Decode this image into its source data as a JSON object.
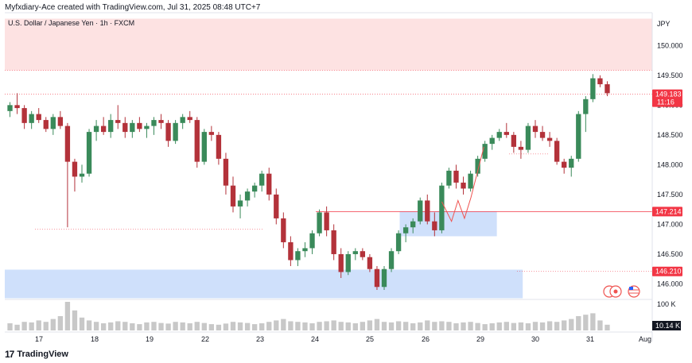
{
  "header": {
    "credit": "Myfxdiary-Ace created with TradingView.com, Jul 31, 2025 08:48 UTC+7"
  },
  "footer": {
    "brand": "TradingView"
  },
  "colors": {
    "up": "#26a69a",
    "down": "#ef5350",
    "candle_up": "#3a8a5a",
    "candle_down": "#b3323a",
    "supply_zone": "#fde2e2",
    "demand_zone": "#cfe0fb",
    "price_tag": "#f23645",
    "volume": "#c8c8c8"
  },
  "chart_data": {
    "type": "candlestick",
    "title": "U.S. Dollar / Japanese Yen · 1h · FXCM",
    "currency_label": "JPY",
    "y_ticks": [
      "150.000",
      "149.500",
      "149.000",
      "148.500",
      "148.000",
      "147.500",
      "147.000",
      "146.500",
      "146.000"
    ],
    "ylim": [
      145.74,
      150.55
    ],
    "x_ticks": [
      "17",
      "18",
      "19",
      "22",
      "23",
      "24",
      "25",
      "26",
      "29",
      "30",
      "31",
      "Aug"
    ],
    "current_price": "149.183",
    "countdown": "11:16",
    "level_tags": [
      "147.214",
      "146.210"
    ],
    "volume_tick": "100 K",
    "volume_value": "10.14 K",
    "zones": [
      {
        "kind": "supply",
        "from": 149.58,
        "to": 150.45,
        "x_start": 0,
        "x_end": 1
      },
      {
        "kind": "demand",
        "from": 145.76,
        "to": 146.24,
        "x_start": 0,
        "x_end": 0.8
      },
      {
        "kind": "demand",
        "from": 146.8,
        "to": 147.22,
        "x_start": 0.61,
        "x_end": 0.76
      }
    ],
    "projection_path": [
      [
        147.38,
        0.675
      ],
      [
        147.05,
        0.69
      ],
      [
        147.4,
        0.7
      ],
      [
        147.1,
        0.71
      ],
      [
        147.45,
        0.72
      ],
      [
        148.3,
        0.74
      ]
    ],
    "candles_ohlc": [
      [
        148.9,
        149.05,
        148.8,
        149.0
      ],
      [
        149.0,
        149.2,
        148.85,
        148.95
      ],
      [
        148.95,
        149.0,
        148.6,
        148.7
      ],
      [
        148.7,
        148.9,
        148.6,
        148.85
      ],
      [
        148.85,
        148.95,
        148.7,
        148.75
      ],
      [
        148.75,
        148.8,
        148.55,
        148.6
      ],
      [
        148.6,
        148.85,
        148.5,
        148.8
      ],
      [
        148.8,
        148.9,
        148.6,
        148.65
      ],
      [
        148.65,
        148.7,
        146.95,
        148.05
      ],
      [
        148.05,
        148.1,
        147.55,
        147.8
      ],
      [
        147.8,
        148.0,
        147.7,
        147.85
      ],
      [
        147.85,
        148.6,
        147.8,
        148.55
      ],
      [
        148.55,
        148.75,
        148.4,
        148.65
      ],
      [
        148.65,
        148.8,
        148.5,
        148.55
      ],
      [
        148.55,
        148.85,
        148.45,
        148.75
      ],
      [
        148.75,
        149.0,
        148.6,
        148.7
      ],
      [
        148.7,
        148.8,
        148.45,
        148.55
      ],
      [
        148.55,
        148.75,
        148.45,
        148.7
      ],
      [
        148.7,
        148.8,
        148.55,
        148.6
      ],
      [
        148.6,
        148.7,
        148.45,
        148.65
      ],
      [
        148.65,
        148.8,
        148.5,
        148.75
      ],
      [
        148.75,
        148.85,
        148.6,
        148.7
      ],
      [
        148.7,
        148.75,
        148.3,
        148.4
      ],
      [
        148.4,
        148.75,
        148.35,
        148.7
      ],
      [
        148.7,
        148.85,
        148.6,
        148.8
      ],
      [
        148.8,
        148.9,
        148.7,
        148.75
      ],
      [
        148.75,
        148.8,
        147.95,
        148.05
      ],
      [
        148.05,
        148.6,
        148.0,
        148.55
      ],
      [
        148.55,
        148.65,
        148.4,
        148.5
      ],
      [
        148.5,
        148.55,
        148.0,
        148.1
      ],
      [
        148.1,
        148.2,
        147.5,
        147.65
      ],
      [
        147.65,
        147.8,
        147.2,
        147.3
      ],
      [
        147.3,
        147.5,
        147.1,
        147.4
      ],
      [
        147.4,
        147.6,
        147.3,
        147.55
      ],
      [
        147.55,
        147.7,
        147.45,
        147.65
      ],
      [
        147.65,
        147.9,
        147.55,
        147.85
      ],
      [
        147.85,
        147.95,
        147.4,
        147.5
      ],
      [
        147.5,
        147.6,
        147.0,
        147.1
      ],
      [
        147.1,
        147.2,
        146.6,
        146.7
      ],
      [
        146.7,
        146.8,
        146.3,
        146.4
      ],
      [
        146.4,
        146.6,
        146.3,
        146.55
      ],
      [
        146.55,
        146.7,
        146.45,
        146.6
      ],
      [
        146.6,
        146.9,
        146.5,
        146.85
      ],
      [
        146.85,
        147.25,
        146.8,
        147.2
      ],
      [
        147.2,
        147.3,
        146.8,
        146.9
      ],
      [
        146.9,
        147.0,
        146.4,
        146.5
      ],
      [
        146.5,
        146.6,
        146.1,
        146.2
      ],
      [
        146.2,
        146.55,
        146.15,
        146.5
      ],
      [
        146.5,
        146.6,
        146.4,
        146.55
      ],
      [
        146.55,
        146.6,
        146.4,
        146.45
      ],
      [
        146.45,
        146.5,
        146.2,
        146.25
      ],
      [
        146.25,
        146.3,
        145.9,
        145.95
      ],
      [
        145.95,
        146.3,
        145.9,
        146.25
      ],
      [
        146.25,
        146.6,
        146.2,
        146.55
      ],
      [
        146.55,
        146.9,
        146.5,
        146.85
      ],
      [
        146.85,
        147.0,
        146.7,
        146.95
      ],
      [
        146.95,
        147.1,
        146.85,
        147.05
      ],
      [
        147.05,
        147.45,
        147.0,
        147.4
      ],
      [
        147.4,
        147.5,
        147.0,
        147.05
      ],
      [
        147.05,
        147.2,
        146.8,
        146.9
      ],
      [
        146.9,
        147.7,
        146.85,
        147.65
      ],
      [
        147.65,
        147.95,
        147.6,
        147.9
      ],
      [
        147.9,
        148.0,
        147.6,
        147.7
      ],
      [
        147.7,
        147.8,
        147.5,
        147.6
      ],
      [
        147.6,
        147.9,
        147.55,
        147.85
      ],
      [
        147.85,
        148.15,
        147.8,
        148.1
      ],
      [
        148.1,
        148.4,
        148.05,
        148.35
      ],
      [
        148.35,
        148.5,
        148.25,
        148.45
      ],
      [
        148.45,
        148.6,
        148.4,
        148.55
      ],
      [
        148.55,
        148.7,
        148.45,
        148.5
      ],
      [
        148.5,
        148.55,
        148.2,
        148.3
      ],
      [
        148.3,
        148.4,
        148.1,
        148.25
      ],
      [
        148.25,
        148.7,
        148.2,
        148.65
      ],
      [
        148.65,
        148.75,
        148.45,
        148.55
      ],
      [
        148.55,
        148.65,
        148.4,
        148.45
      ],
      [
        148.45,
        148.55,
        148.3,
        148.4
      ],
      [
        148.4,
        148.45,
        148.0,
        148.05
      ],
      [
        148.05,
        148.1,
        147.85,
        147.95
      ],
      [
        147.95,
        148.15,
        147.8,
        148.1
      ],
      [
        148.1,
        148.9,
        148.05,
        148.85
      ],
      [
        148.85,
        149.15,
        148.55,
        149.1
      ],
      [
        149.1,
        149.52,
        149.05,
        149.45
      ],
      [
        149.45,
        149.5,
        149.3,
        149.35
      ],
      [
        149.35,
        149.4,
        149.15,
        149.2
      ]
    ],
    "volumes": [
      0.25,
      0.2,
      0.3,
      0.28,
      0.35,
      0.3,
      0.4,
      0.5,
      1.0,
      0.7,
      0.45,
      0.35,
      0.3,
      0.25,
      0.28,
      0.32,
      0.3,
      0.25,
      0.22,
      0.28,
      0.3,
      0.26,
      0.24,
      0.3,
      0.28,
      0.25,
      0.3,
      0.26,
      0.22,
      0.2,
      0.24,
      0.3,
      0.28,
      0.26,
      0.22,
      0.25,
      0.3,
      0.35,
      0.4,
      0.32,
      0.3,
      0.28,
      0.25,
      0.3,
      0.32,
      0.35,
      0.3,
      0.28,
      0.25,
      0.3,
      0.35,
      0.4,
      0.3,
      0.28,
      0.32,
      0.3,
      0.25,
      0.28,
      0.35,
      0.3,
      0.32,
      0.3,
      0.25,
      0.28,
      0.3,
      0.26,
      0.22,
      0.25,
      0.28,
      0.3,
      0.26,
      0.28,
      0.25,
      0.3,
      0.28,
      0.32,
      0.3,
      0.35,
      0.4,
      0.5,
      0.55,
      0.6,
      0.35,
      0.2
    ]
  }
}
